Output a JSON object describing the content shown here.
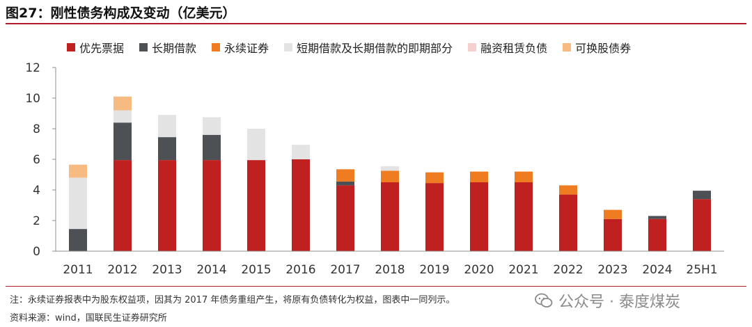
{
  "title": "图27：刚性债务构成及变动（亿美元）",
  "chart_data": {
    "type": "bar",
    "stacked": true,
    "categories": [
      "2011",
      "2012",
      "2013",
      "2014",
      "2015",
      "2016",
      "2017",
      "2018",
      "2019",
      "2020",
      "2021",
      "2022",
      "2023",
      "2024",
      "25H1"
    ],
    "ylim": [
      0,
      12
    ],
    "yticks": [
      0,
      2,
      4,
      6,
      8,
      10,
      12
    ],
    "grid": false,
    "legend_position": "top",
    "series": [
      {
        "name": "优先票据",
        "color": "#c0201f",
        "values": [
          0,
          5.95,
          5.95,
          5.95,
          5.95,
          6.0,
          4.3,
          4.5,
          4.45,
          4.5,
          4.5,
          3.7,
          2.1,
          2.1,
          3.4
        ]
      },
      {
        "name": "长期借款",
        "color": "#4d5156",
        "values": [
          1.45,
          2.45,
          1.5,
          1.65,
          0,
          0,
          0.25,
          0,
          0,
          0,
          0,
          0,
          0,
          0.2,
          0.55
        ]
      },
      {
        "name": "永续证券",
        "color": "#f07c22",
        "values": [
          0,
          0,
          0,
          0,
          0,
          0,
          0.8,
          0.75,
          0.7,
          0.7,
          0.7,
          0.6,
          0.6,
          0,
          0
        ]
      },
      {
        "name": "短期借款及长期借款的即期部分",
        "color": "#e3e3e3",
        "values": [
          3.35,
          0.8,
          1.45,
          1.15,
          2.05,
          0.95,
          0,
          0.3,
          0,
          0,
          0,
          0,
          0,
          0,
          0
        ]
      },
      {
        "name": "融资租赁负债",
        "color": "#f6cfcf",
        "values": [
          0,
          0,
          0,
          0,
          0,
          0,
          0,
          0,
          0,
          0,
          0,
          0,
          0,
          0,
          0
        ]
      },
      {
        "name": "可换股债券",
        "color": "#f7bb82",
        "values": [
          0.85,
          0.9,
          0,
          0,
          0,
          0,
          0,
          0,
          0,
          0,
          0,
          0,
          0,
          0,
          0
        ]
      }
    ]
  },
  "notes": {
    "line1": "注：永续证券报表中为股东权益项，因其为 2017 年债务重组产生，将原有负债转化为权益，图表中一同列示。",
    "line2": "资料来源：wind，国联民生证券研究所"
  },
  "watermark": {
    "icon": "wechat-icon",
    "text": "公众号 · 泰度煤炭"
  }
}
